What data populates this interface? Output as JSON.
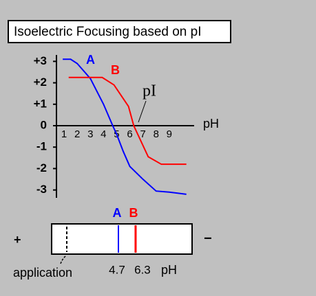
{
  "chart_data": {
    "type": "line",
    "title": "Isoelectric Focusing based on pI",
    "x_label": "pH",
    "annotation": "pI",
    "xlim": [
      0.5,
      10.5
    ],
    "xticks": [
      1,
      2,
      3,
      4,
      5,
      6,
      7,
      8,
      9
    ],
    "ylim": [
      -3.3,
      3.3
    ],
    "yticks": [
      {
        "value": 3,
        "label": "+3"
      },
      {
        "value": 2,
        "label": "+2"
      },
      {
        "value": 1,
        "label": "+1"
      },
      0,
      -1,
      -2,
      -3
    ],
    "series": [
      {
        "name": "A",
        "color": "#0000ff",
        "x": [
          0.9,
          1.5,
          2,
          3,
          4,
          4.7,
          5,
          5.5,
          6,
          7,
          8,
          9,
          10.3
        ],
        "values": [
          3.1,
          3.1,
          2.9,
          2.2,
          1.0,
          0,
          -0.4,
          -1.2,
          -1.9,
          -2.5,
          -3.05,
          -3.1,
          -3.2
        ]
      },
      {
        "name": "B",
        "color": "#ff0000",
        "x": [
          1.35,
          3.9,
          4.8,
          5.9,
          6.3,
          7.4,
          8.4,
          10.3
        ],
        "values": [
          2.25,
          2.25,
          1.9,
          0.9,
          0,
          -1.45,
          -1.8,
          -1.8
        ]
      }
    ],
    "strip": {
      "plus": "+",
      "minus": "−",
      "application": "application",
      "unit": "pH",
      "markers": [
        {
          "name": "A",
          "value": 4.7,
          "color": "#0000ff"
        },
        {
          "name": "B",
          "value": 6.3,
          "color": "#ff0000"
        }
      ]
    }
  }
}
